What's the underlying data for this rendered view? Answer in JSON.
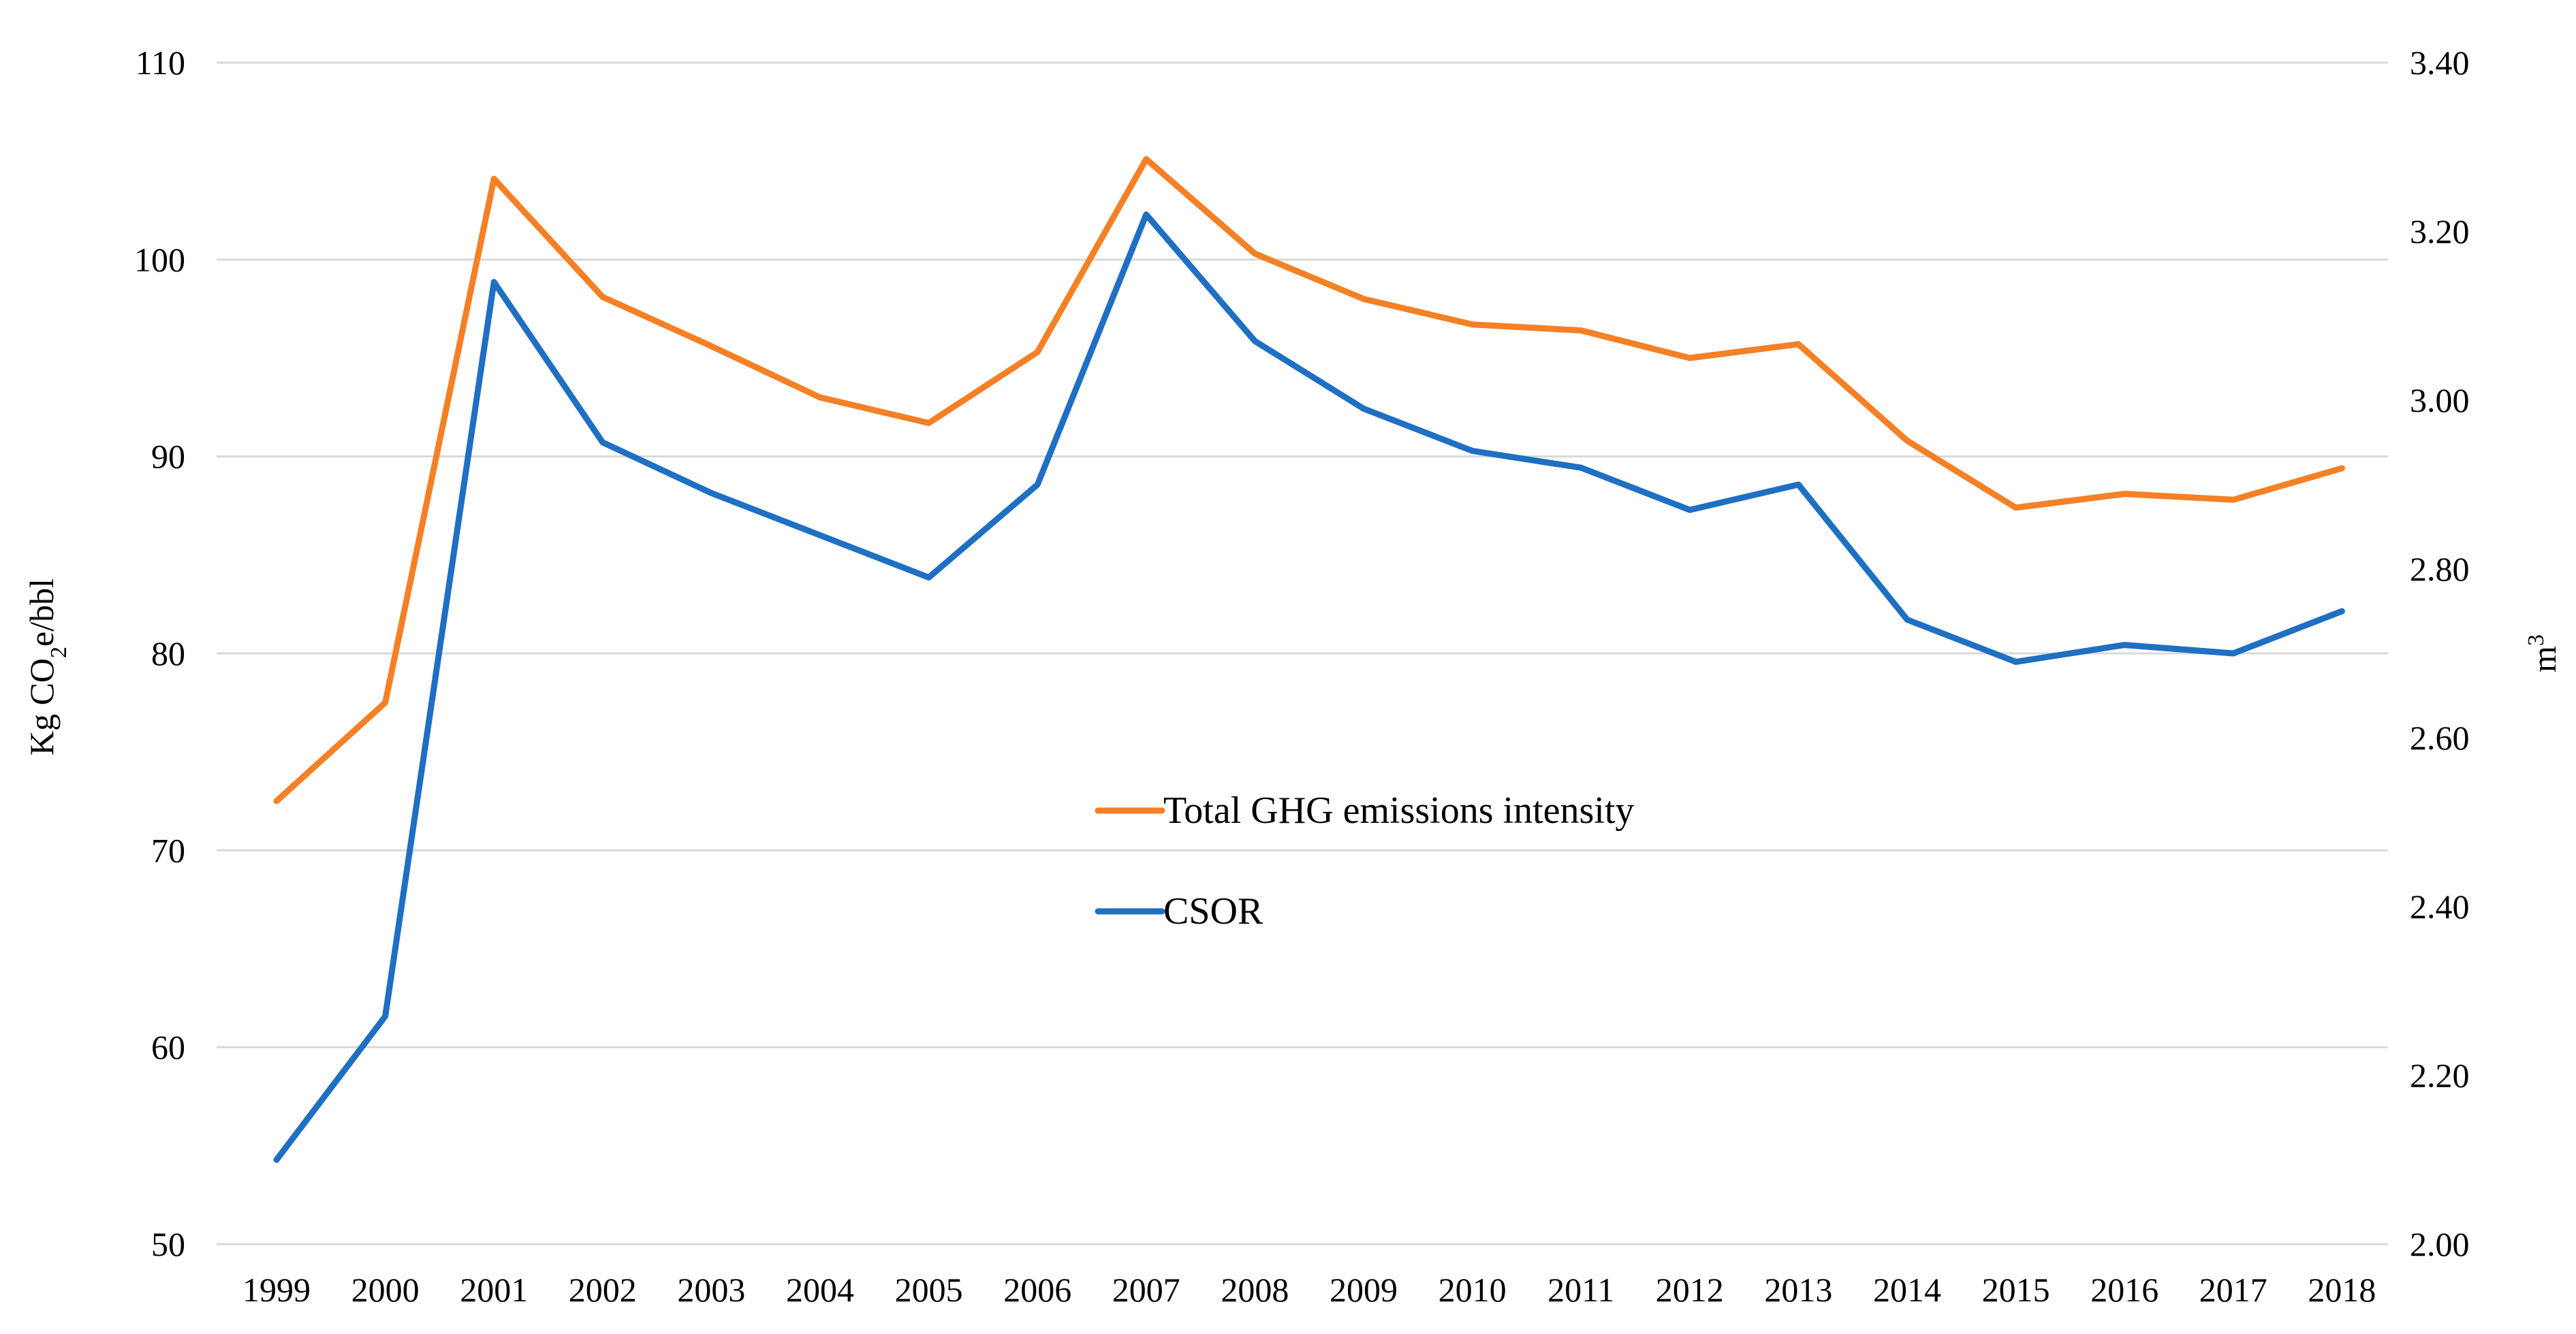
{
  "chart_data": {
    "type": "line",
    "title": "",
    "xlabel": "",
    "ylabel": {
      "prefix": "Kg CO",
      "subscript": "2",
      "suffix": "e/bbl"
    },
    "y2label": {
      "base": "m",
      "superscript": "3"
    },
    "x": [
      "1999",
      "2000",
      "2001",
      "2002",
      "2003",
      "2004",
      "2005",
      "2006",
      "2007",
      "2008",
      "2009",
      "2010",
      "2011",
      "2012",
      "2013",
      "2014",
      "2015",
      "2016",
      "2017",
      "2018"
    ],
    "ylim": [
      50,
      110
    ],
    "yticks": [
      50,
      60,
      70,
      80,
      90,
      100,
      110
    ],
    "ytick_labels": [
      "50",
      "60",
      "70",
      "80",
      "90",
      "100",
      "110"
    ],
    "y2lim": [
      2.0,
      3.4
    ],
    "y2ticks": [
      2.0,
      2.2,
      2.4,
      2.6,
      2.8,
      3.0,
      3.2,
      3.4
    ],
    "y2tick_labels": [
      "2.00",
      "2.20",
      "2.40",
      "2.60",
      "2.80",
      "3.00",
      "3.20",
      "3.40"
    ],
    "grid": true,
    "legend_position": "center",
    "series": [
      {
        "name": "Total GHG emissions intensity",
        "axis": "left",
        "color": "#F58025",
        "values": [
          72.5,
          77.5,
          104.1,
          98.1,
          95.6,
          93.0,
          91.7,
          95.3,
          105.1,
          100.3,
          98.0,
          96.7,
          96.4,
          95.0,
          95.7,
          90.8,
          87.4,
          88.1,
          87.8,
          89.4
        ]
      },
      {
        "name": "CSOR",
        "axis": "right",
        "color": "#1F6FC3",
        "values": [
          2.1,
          2.27,
          3.14,
          2.95,
          2.89,
          2.84,
          2.79,
          2.9,
          3.22,
          3.07,
          2.99,
          2.94,
          2.92,
          2.87,
          2.9,
          2.74,
          2.69,
          2.71,
          2.7,
          2.75
        ]
      }
    ]
  }
}
